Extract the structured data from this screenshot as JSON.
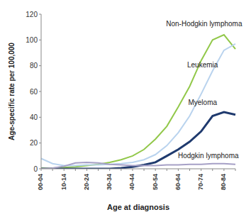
{
  "chart_data": {
    "type": "line",
    "x_label": "Age at diagnosis",
    "y_label": "Age-specific rate per 100,000",
    "categories": [
      "00-04",
      null,
      "10-14",
      null,
      "20-24",
      null,
      "30-34",
      null,
      "40-44",
      null,
      "50-54",
      null,
      "60-64",
      null,
      "70-74",
      null,
      "80-84",
      null
    ],
    "ylim": [
      0,
      120
    ],
    "yticks": [
      0,
      20,
      40,
      60,
      80,
      100,
      120
    ],
    "grid": false,
    "marker": "none",
    "series": [
      {
        "name": "Non-Hodgkin lymphoma",
        "color": "#92c84a",
        "values": [
          0.5,
          0.6,
          1,
          1.5,
          2.5,
          3.5,
          5,
          7,
          10,
          15,
          23,
          33,
          48,
          64,
          84,
          100,
          104,
          93
        ]
      },
      {
        "name": "Leukemia",
        "color": "#b9d3ee",
        "values": [
          8,
          4,
          2.5,
          2.5,
          3,
          3,
          3.5,
          4,
          5,
          7,
          11,
          18,
          28,
          41,
          58,
          76,
          92,
          97
        ]
      },
      {
        "name": "Myeloma",
        "color": "#1f3a6e",
        "values": [
          0,
          0,
          0,
          0,
          0,
          0,
          0,
          0.5,
          1.5,
          3,
          5,
          10,
          15,
          21,
          29,
          41,
          44,
          42
        ]
      },
      {
        "name": "Hodgkin lymphoma",
        "color": "#a6a0c6",
        "values": [
          0,
          0.5,
          2,
          4.5,
          5,
          4.5,
          3.5,
          3,
          2.5,
          2.5,
          2.5,
          3,
          3,
          3.5,
          3.5,
          4,
          4,
          3.5
        ]
      }
    ]
  }
}
